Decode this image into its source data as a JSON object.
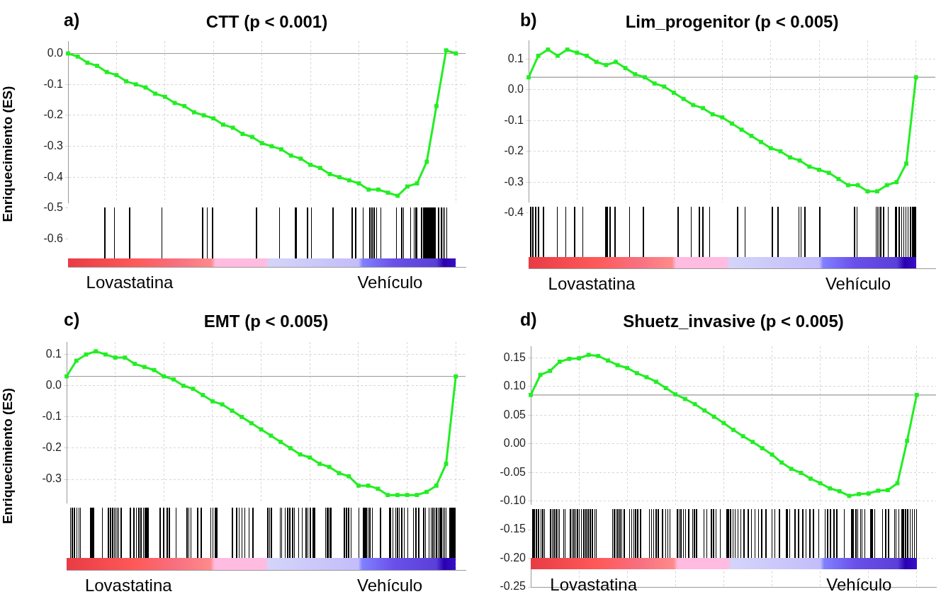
{
  "chart_data": [
    {
      "type": "line",
      "title": "CTT (p < 0.001)",
      "ylabel": "Enriquecimiento (ES)",
      "annotations": [
        "a)",
        "Lovastatina",
        "Vehículo"
      ],
      "tick_labels": "y",
      "grid": true,
      "marker": "square",
      "line_style": "solid",
      "legend": false,
      "categories": [
        null,
        null,
        null,
        null,
        null,
        null,
        null,
        null,
        null,
        null,
        null,
        null,
        null,
        null,
        null,
        null,
        null,
        null,
        null,
        null,
        null,
        null,
        null,
        null,
        null,
        null,
        null,
        null,
        null,
        null,
        null,
        null,
        null,
        null,
        null,
        null,
        null,
        null,
        null,
        null,
        null,
        null
      ],
      "series": [
        {
          "color": "#22ee22",
          "values": [
            0,
            -0.01,
            -0.03,
            -0.04,
            -0.06,
            -0.07,
            -0.09,
            -0.1,
            -0.11,
            -0.13,
            -0.14,
            -0.16,
            -0.17,
            -0.19,
            -0.2,
            -0.21,
            -0.23,
            -0.24,
            -0.26,
            -0.27,
            -0.29,
            -0.3,
            -0.31,
            -0.33,
            -0.34,
            -0.36,
            -0.37,
            -0.39,
            -0.4,
            -0.41,
            -0.42,
            -0.44,
            -0.44,
            -0.45,
            -0.46,
            -0.43,
            -0.42,
            -0.35,
            -0.17,
            0.01,
            0,
            null
          ]
        }
      ],
      "ylim": [
        -0.69,
        0.04
      ],
      "yticks": [
        {
          "value": 0,
          "label": "0.0"
        },
        -0.1,
        -0.2,
        -0.3,
        -0.4,
        -0.5,
        -0.6
      ],
      "ref_lines": [
        {
          "axis": "y",
          "value": 0,
          "color": "#999999"
        }
      ]
    },
    {
      "type": "line",
      "title": "Lim_progenitor (p < 0.005)",
      "annotations": [
        "b)",
        "Lovastatina",
        "Vehículo"
      ],
      "tick_labels": "y",
      "grid": true,
      "marker": "square",
      "line_style": "solid",
      "legend": false,
      "categories": [
        null,
        null,
        null,
        null,
        null,
        null,
        null,
        null,
        null,
        null,
        null,
        null,
        null,
        null,
        null,
        null,
        null,
        null,
        null,
        null,
        null,
        null,
        null,
        null,
        null,
        null,
        null,
        null,
        null,
        null,
        null,
        null,
        null,
        null,
        null,
        null,
        null,
        null,
        null,
        null,
        null,
        null,
        null
      ],
      "series": [
        {
          "color": "#22ee22",
          "values": [
            0.04,
            0.11,
            0.13,
            0.11,
            0.13,
            0.12,
            0.11,
            0.09,
            0.08,
            0.09,
            0.07,
            0.05,
            0.04,
            0.02,
            0.01,
            -0.01,
            -0.03,
            -0.05,
            -0.06,
            -0.08,
            -0.09,
            -0.11,
            -0.13,
            -0.15,
            -0.17,
            -0.19,
            -0.2,
            -0.22,
            -0.23,
            -0.25,
            -0.26,
            -0.27,
            -0.29,
            -0.31,
            -0.31,
            -0.33,
            -0.33,
            -0.31,
            -0.3,
            -0.24,
            0.04,
            null,
            null
          ]
        }
      ],
      "ylim": [
        -0.58,
        0.16
      ],
      "yticks": [
        0.1,
        {
          "value": 0,
          "label": "0.0"
        },
        -0.1,
        -0.2,
        -0.3,
        -0.4
      ],
      "ref_lines": [
        {
          "axis": "y",
          "value": 0.04,
          "color": "#999999"
        }
      ]
    },
    {
      "type": "line",
      "title": "EMT (p < 0.005)",
      "ylabel": "Enriquecimiento (ES)",
      "annotations": [
        "c)",
        "Lovastatina",
        "Vehículo"
      ],
      "tick_labels": "y",
      "grid": true,
      "marker": "square",
      "line_style": "solid",
      "legend": false,
      "categories": [
        null,
        null,
        null,
        null,
        null,
        null,
        null,
        null,
        null,
        null,
        null,
        null,
        null,
        null,
        null,
        null,
        null,
        null,
        null,
        null,
        null,
        null,
        null,
        null,
        null,
        null,
        null,
        null,
        null,
        null,
        null,
        null,
        null,
        null,
        null,
        null,
        null,
        null,
        null,
        null,
        null,
        null
      ],
      "series": [
        {
          "color": "#22ee22",
          "values": [
            0.03,
            0.08,
            0.1,
            0.11,
            0.1,
            0.09,
            0.09,
            0.07,
            0.06,
            0.05,
            0.03,
            0.02,
            0,
            -0.01,
            -0.03,
            -0.05,
            -0.06,
            -0.08,
            -0.1,
            -0.12,
            -0.14,
            -0.16,
            -0.18,
            -0.2,
            -0.22,
            -0.23,
            -0.25,
            -0.26,
            -0.28,
            -0.29,
            -0.32,
            -0.32,
            -0.33,
            -0.35,
            -0.35,
            -0.35,
            -0.35,
            -0.34,
            -0.32,
            -0.25,
            0.03,
            null
          ]
        }
      ],
      "ylim": [
        -0.59,
        0.14
      ],
      "yticks": [
        0.1,
        {
          "value": 0,
          "label": "0.0"
        },
        -0.1,
        -0.2,
        -0.3
      ],
      "ref_lines": [
        {
          "axis": "y",
          "value": 0.03,
          "color": "#999999"
        }
      ]
    },
    {
      "type": "line",
      "title": "Shuetz_invasive (p < 0.005)",
      "annotations": [
        "d)",
        "Lovastatina",
        "Vehículo"
      ],
      "tick_labels": "y",
      "grid": true,
      "marker": "square",
      "line_style": "solid",
      "legend": false,
      "categories": [
        null,
        null,
        null,
        null,
        null,
        null,
        null,
        null,
        null,
        null,
        null,
        null,
        null,
        null,
        null,
        null,
        null,
        null,
        null,
        null,
        null,
        null,
        null,
        null,
        null,
        null,
        null,
        null,
        null,
        null,
        null,
        null,
        null,
        null,
        null,
        null,
        null,
        null,
        null,
        null,
        null,
        null,
        null
      ],
      "series": [
        {
          "color": "#22ee22",
          "values": [
            0.085,
            0.12,
            0.127,
            0.143,
            0.148,
            0.149,
            0.155,
            0.153,
            0.145,
            0.137,
            0.132,
            0.123,
            0.116,
            0.108,
            0.097,
            0.086,
            0.078,
            0.069,
            0.058,
            0.047,
            0.036,
            0.024,
            0.013,
            0.003,
            -0.008,
            -0.019,
            -0.033,
            -0.044,
            -0.051,
            -0.061,
            -0.069,
            -0.078,
            -0.083,
            -0.091,
            -0.088,
            -0.087,
            -0.082,
            -0.081,
            -0.069,
            0.005,
            0.085,
            null,
            null
          ]
        }
      ],
      "ylim": [
        -0.25,
        0.17
      ],
      "yticks": [
        0.15,
        {
          "value": 0.1,
          "label": "0.10"
        },
        0.05,
        {
          "value": 0,
          "label": "0.00"
        },
        -0.05,
        {
          "value": -0.1,
          "label": "-0.10"
        },
        -0.15,
        {
          "value": -0.2,
          "label": "-0.20"
        },
        -0.25
      ],
      "ref_lines": [
        {
          "axis": "y",
          "value": 0.085,
          "color": "#999999"
        }
      ]
    }
  ]
}
